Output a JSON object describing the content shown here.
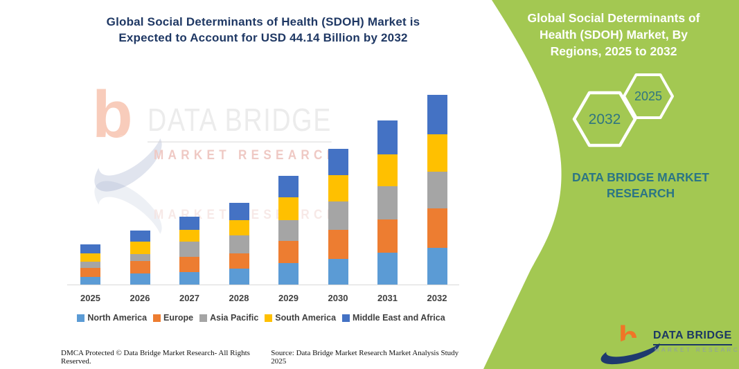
{
  "header": {
    "title_lines": [
      "Global Social Determinants of Health (SDOH) Market is",
      "Expected to Account for USD 44.14 Billion by 2032"
    ],
    "title_color": "#1F3864"
  },
  "watermark": {
    "monogram": "b",
    "brand": "DATA BRIDGE",
    "sub": "MARKET RESEARCH",
    "sub_reflection": "MARKET RESEARCH"
  },
  "side_panel": {
    "background_color": "#A3C852",
    "title_lines": [
      "Global Social Determinants of",
      "Health (SDOH) Market, By",
      "Regions, 2025 to 2032"
    ],
    "hexagon_back_label": "2032",
    "hexagon_front_label": "2025",
    "hexagon_text_color": "#2F7580",
    "brand_lines": [
      "DATA BRIDGE MARKET",
      "RESEARCH"
    ],
    "brand_color": "#2B7585"
  },
  "footer": {
    "left": "DMCA Protected © Data Bridge Market Research-  All Rights Reserved.",
    "source": "Source: Data Bridge Market Research  Market Analysis Study 2025"
  },
  "logo": {
    "monogram": "b",
    "monogram_color": "#F07527",
    "name": "DATA BRIDGE",
    "name_color": "#1B3764",
    "sub": "MARKET RESEARCH"
  },
  "chart_data": {
    "type": "bar",
    "stacked": true,
    "unit": "USD Billion",
    "title": "",
    "xlabel": "",
    "ylabel": "",
    "y_axis_visible": false,
    "grid": false,
    "legend_position": "bottom",
    "ylim": [
      0,
      45
    ],
    "categories": [
      "2025",
      "2026",
      "2027",
      "2028",
      "2029",
      "2030",
      "2031",
      "2032"
    ],
    "series": [
      {
        "name": "North America",
        "color": "#5B9BD5",
        "values": [
          1.77,
          2.57,
          2.85,
          3.65,
          4.99,
          6.0,
          7.45,
          8.48
        ]
      },
      {
        "name": "Europe",
        "color": "#ED7D31",
        "values": [
          2.16,
          2.85,
          3.59,
          3.65,
          5.21,
          6.81,
          7.67,
          9.22
        ]
      },
      {
        "name": "Asia Pacific",
        "color": "#A5A5A5",
        "values": [
          1.45,
          1.72,
          3.54,
          4.12,
          4.83,
          6.5,
          7.77,
          8.58
        ]
      },
      {
        "name": "South America",
        "color": "#FFC000",
        "values": [
          1.93,
          2.83,
          2.8,
          3.64,
          5.25,
          6.11,
          7.35,
          8.75
        ]
      },
      {
        "name": "Middle East and Africa",
        "color": "#4472C4",
        "values": [
          1.98,
          2.64,
          3.06,
          3.97,
          4.99,
          6.21,
          7.93,
          9.11
        ]
      }
    ],
    "totals": [
      9.29,
      12.61,
      15.84,
      19.03,
      25.27,
      31.63,
      38.17,
      44.14
    ],
    "highlight_total_2032": "USD 44.14 Billion"
  }
}
